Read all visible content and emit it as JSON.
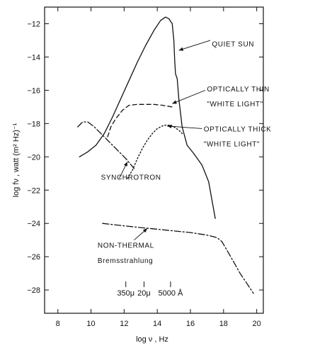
{
  "chart_data": {
    "type": "line",
    "title": "",
    "xlabel": "log ν , Hz",
    "ylabel": "log fν , watt (m² Hz)⁻¹",
    "xlim": [
      7.2,
      20.4
    ],
    "ylim": [
      -29.4,
      -11.0
    ],
    "x_ticks": [
      8,
      10,
      12,
      14,
      16,
      18,
      20
    ],
    "y_ticks": [
      -12,
      -14,
      -16,
      -18,
      -20,
      -22,
      -24,
      -26,
      -28
    ],
    "grid": false,
    "legend": "none",
    "wavelength_markers": [
      {
        "label": "350μ",
        "x": 12.1
      },
      {
        "label": "20μ",
        "x": 13.2
      },
      {
        "label": "5000 Å",
        "x": 14.8
      }
    ],
    "series": [
      {
        "name": "QUIET SUN",
        "style": "solid",
        "x": [
          9.3,
          9.8,
          10.3,
          10.8,
          11.3,
          11.8,
          12.3,
          12.8,
          13.3,
          13.8,
          14.2,
          14.5,
          14.7,
          14.9,
          15.0,
          15.05,
          15.1,
          15.2,
          15.3,
          15.5,
          15.8,
          16.2,
          16.7,
          17.1,
          17.3,
          17.5
        ],
        "y": [
          -20.0,
          -19.7,
          -19.3,
          -18.6,
          -17.6,
          -16.5,
          -15.4,
          -14.3,
          -13.3,
          -12.4,
          -11.8,
          -11.6,
          -11.7,
          -12.0,
          -13.0,
          -14.2,
          -15.0,
          -15.3,
          -16.5,
          -18.2,
          -19.3,
          -19.8,
          -20.5,
          -21.5,
          -22.6,
          -23.7
        ]
      },
      {
        "name": "OPTICALLY THIN \"WHITE LIGHT\"",
        "style": "dashed",
        "x": [
          11.0,
          11.2,
          11.5,
          11.9,
          12.3,
          12.8,
          13.3,
          13.8,
          14.3,
          14.6,
          14.9
        ],
        "y": [
          -18.8,
          -18.2,
          -17.7,
          -17.2,
          -16.9,
          -16.85,
          -16.85,
          -16.85,
          -16.9,
          -16.95,
          -17.0
        ]
      },
      {
        "name": "OPTICALLY THICK \"WHITE LIGHT\"",
        "style": "dotted",
        "x": [
          12.2,
          12.5,
          12.8,
          13.1,
          13.4,
          13.7,
          14.0,
          14.4,
          14.8,
          15.0,
          15.3,
          15.5
        ],
        "y": [
          -21.3,
          -20.8,
          -20.1,
          -19.5,
          -19.0,
          -18.6,
          -18.3,
          -18.1,
          -18.1,
          -18.2,
          -18.4,
          -18.6
        ]
      },
      {
        "name": "SYNCHROTRON",
        "style": "dash-dot",
        "x": [
          9.2,
          9.5,
          9.8,
          10.2,
          10.6,
          11.1,
          11.6,
          12.1,
          12.6
        ],
        "y": [
          -18.2,
          -17.9,
          -17.9,
          -18.2,
          -18.6,
          -19.1,
          -19.6,
          -20.1,
          -20.7
        ]
      },
      {
        "name": "NON-THERMAL Bremsstrahlung",
        "style": "dash-dot",
        "x": [
          10.7,
          12.0,
          13.0,
          14.0,
          15.0,
          16.0,
          17.0,
          17.6,
          17.9,
          18.2,
          18.6,
          19.0,
          19.4,
          19.8
        ],
        "y": [
          -24.0,
          -24.15,
          -24.25,
          -24.35,
          -24.45,
          -24.55,
          -24.7,
          -24.85,
          -25.1,
          -25.6,
          -26.3,
          -27.0,
          -27.6,
          -28.2
        ]
      }
    ],
    "annotations": [
      {
        "text": "QUIET SUN",
        "x": 17.3,
        "y": -13.2
      },
      {
        "text": "OPTICALLY THIN",
        "x": 17.0,
        "y": -15.9
      },
      {
        "text": "\"WHITE LIGHT\"",
        "x": 17.0,
        "y": -16.8
      },
      {
        "text": "OPTICALLY THICK",
        "x": 16.8,
        "y": -18.3
      },
      {
        "text": "\"WHITE LIGHT\"",
        "x": 16.8,
        "y": -19.2
      },
      {
        "text": "SYNCHROTRON",
        "x": 10.6,
        "y": -21.2
      },
      {
        "text": "NON-THERMAL",
        "x": 10.4,
        "y": -25.3
      },
      {
        "text": "Bremsstrahlung",
        "x": 10.4,
        "y": -26.2
      }
    ]
  }
}
